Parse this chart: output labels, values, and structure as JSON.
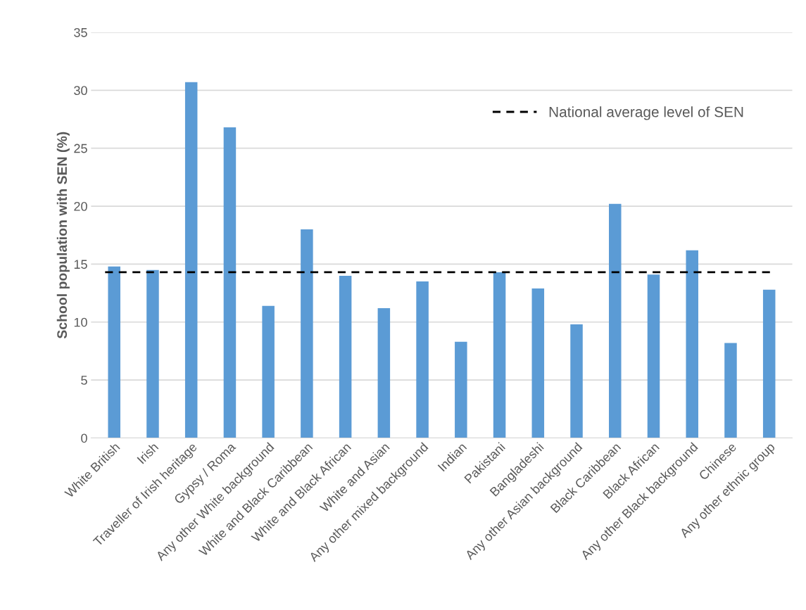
{
  "chart_data": {
    "type": "bar",
    "ylabel": "School population with SEN (%)",
    "categories": [
      "White British",
      "Irish",
      "Traveller of Irish heritage",
      "Gypsy / Roma",
      "Any other White background",
      "White and Black Caribbean",
      "White and Black African",
      "White and Asian",
      "Any other mixed background",
      "Indian",
      "Pakistani",
      "Bangladeshi",
      "Any other Asian background",
      "Black Caribbean",
      "Black African",
      "Any other Black background",
      "Chinese",
      "Any other ethnic group"
    ],
    "values": [
      14.8,
      14.5,
      30.7,
      26.8,
      11.4,
      18.0,
      14.0,
      11.2,
      13.5,
      8.3,
      14.3,
      12.9,
      9.8,
      20.2,
      14.1,
      16.2,
      8.2,
      12.8
    ],
    "color": "#5b9bd5",
    "ylim": [
      0,
      35
    ],
    "yticks": [
      0,
      5,
      10,
      15,
      20,
      25,
      30,
      35
    ],
    "grid": "y",
    "legend": "top right",
    "ref_lines": [
      {
        "axis": "y",
        "value": 14.3,
        "label": "National average level of SEN",
        "color": "#000000",
        "line_style": "dashed"
      }
    ]
  }
}
